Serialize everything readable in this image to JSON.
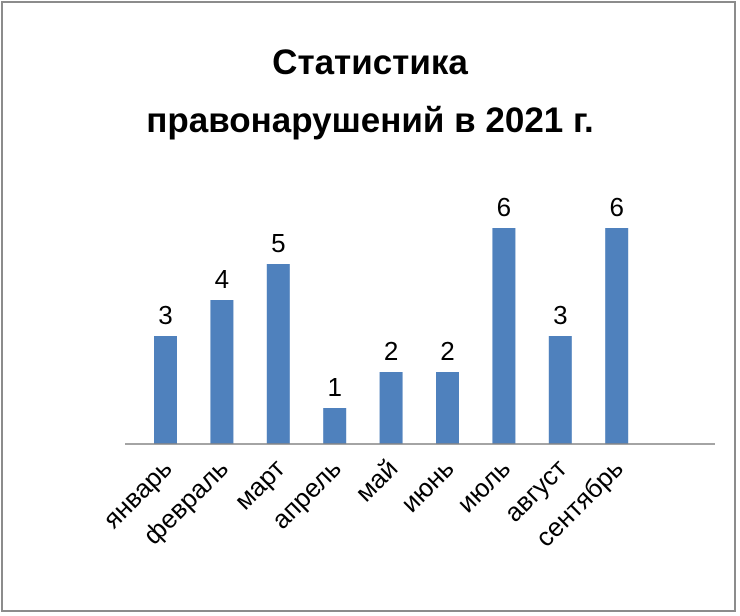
{
  "chart_data": {
    "type": "bar",
    "title_lines": [
      "Статистика",
      "правонарушений в 2021 г."
    ],
    "categories": [
      "январь",
      "февраль",
      "март",
      "апрель",
      "май",
      "июнь",
      "июль",
      "август",
      "сентябрь"
    ],
    "values": [
      3,
      4,
      5,
      1,
      2,
      2,
      6,
      3,
      6
    ],
    "xlabel": "",
    "ylabel": "",
    "ylim": [
      0,
      6
    ],
    "grid": false,
    "legend": "none",
    "data_labels": true,
    "bar_color": "#4f81bd",
    "axis_color": "#868686"
  }
}
